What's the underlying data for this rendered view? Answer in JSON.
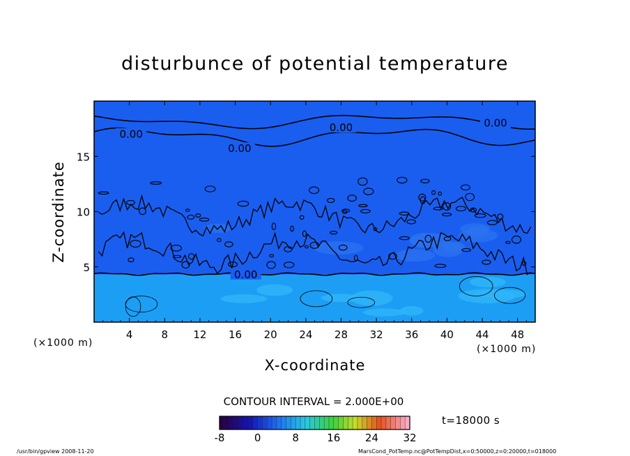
{
  "chart_data": {
    "type": "heatmap",
    "title": "disturbunce of potential temperature",
    "xlabel": "X-coordinate",
    "ylabel": "Z-coordinate",
    "x_unit_left": "(×1000 m)",
    "x_unit_right": "(×1000 m)",
    "xlim": [
      0,
      50
    ],
    "ylim": [
      0,
      20
    ],
    "x_ticks": [
      4,
      8,
      12,
      16,
      20,
      24,
      28,
      32,
      36,
      40,
      44,
      48
    ],
    "y_ticks": [
      5,
      10,
      15
    ],
    "contour_interval_text": "CONTOUR INTERVAL = 2.000E+00",
    "contour_labels": [
      {
        "text": "0.00",
        "x": 4.2,
        "z": 17.0
      },
      {
        "text": "0.00",
        "x": 16.5,
        "z": 15.7
      },
      {
        "text": "0.00",
        "x": 28.0,
        "z": 17.6
      },
      {
        "text": "0.00",
        "x": 45.5,
        "z": 18.0
      },
      {
        "text": "0.00",
        "x": 17.2,
        "z": 4.3
      }
    ],
    "colorbar": {
      "ticks": [
        "-8",
        "0",
        "8",
        "16",
        "24",
        "32"
      ],
      "min": -8,
      "max": 32
    },
    "regions": [
      {
        "name": "upper layer",
        "z_range": [
          4.3,
          20
        ],
        "value_range": [
          -4,
          0
        ],
        "color": "#1a5ef0"
      },
      {
        "name": "lower layer",
        "z_range": [
          0,
          4.3
        ],
        "value_range": [
          2,
          6
        ],
        "color": "#1d9ef5"
      }
    ]
  },
  "time_label": "t=18000 s",
  "footer_left": "/usr/bin/gpview   2008-11-20",
  "footer_right": "MarsCond_PotTemp.nc@PotTempDist,x=0:50000,z=0:20000,t=018000",
  "colors": {
    "upper_blue": "#1a5ef0",
    "upper_blue_light": "#2c74f0",
    "lower_blue": "#1d9ef5",
    "lower_blue_light": "#2fb5f8",
    "contour": "#000000"
  }
}
